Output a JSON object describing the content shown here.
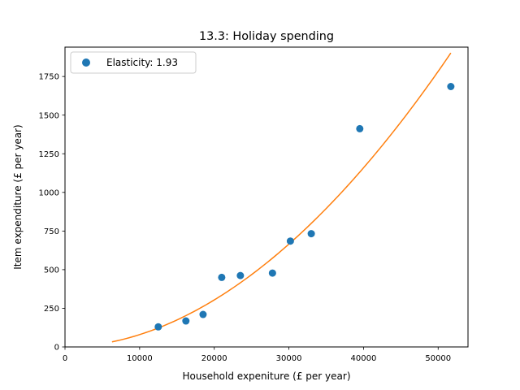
{
  "chart_data": {
    "type": "scatter",
    "title": "13.3: Holiday spending",
    "xlabel": "Household expeniture (£ per year)",
    "ylabel": "Item expenditure (£ per year)",
    "xlim": [
      0,
      54000
    ],
    "ylim": [
      0,
      1940
    ],
    "xticks": [
      0,
      10000,
      20000,
      30000,
      40000,
      50000
    ],
    "yticks": [
      0,
      250,
      500,
      750,
      1000,
      1250,
      1500,
      1750
    ],
    "grid": false,
    "legend_position": "top-left",
    "series": [
      {
        "name": "Elasticity: 1.93",
        "kind": "scatter",
        "color": "#1f77b4",
        "points": [
          {
            "x": 12500,
            "y": 130
          },
          {
            "x": 16200,
            "y": 168
          },
          {
            "x": 18500,
            "y": 210
          },
          {
            "x": 21000,
            "y": 450
          },
          {
            "x": 23500,
            "y": 462
          },
          {
            "x": 27800,
            "y": 478
          },
          {
            "x": 30200,
            "y": 685
          },
          {
            "x": 33000,
            "y": 733
          },
          {
            "x": 39500,
            "y": 1412
          },
          {
            "x": 51700,
            "y": 1685
          }
        ]
      },
      {
        "kind": "line",
        "color": "#ff7f0e",
        "fit": {
          "form": "power",
          "coefficient": 1902,
          "reference_x": 51700,
          "exponent": 1.93
        },
        "x_range": [
          6300,
          51700
        ]
      }
    ]
  }
}
